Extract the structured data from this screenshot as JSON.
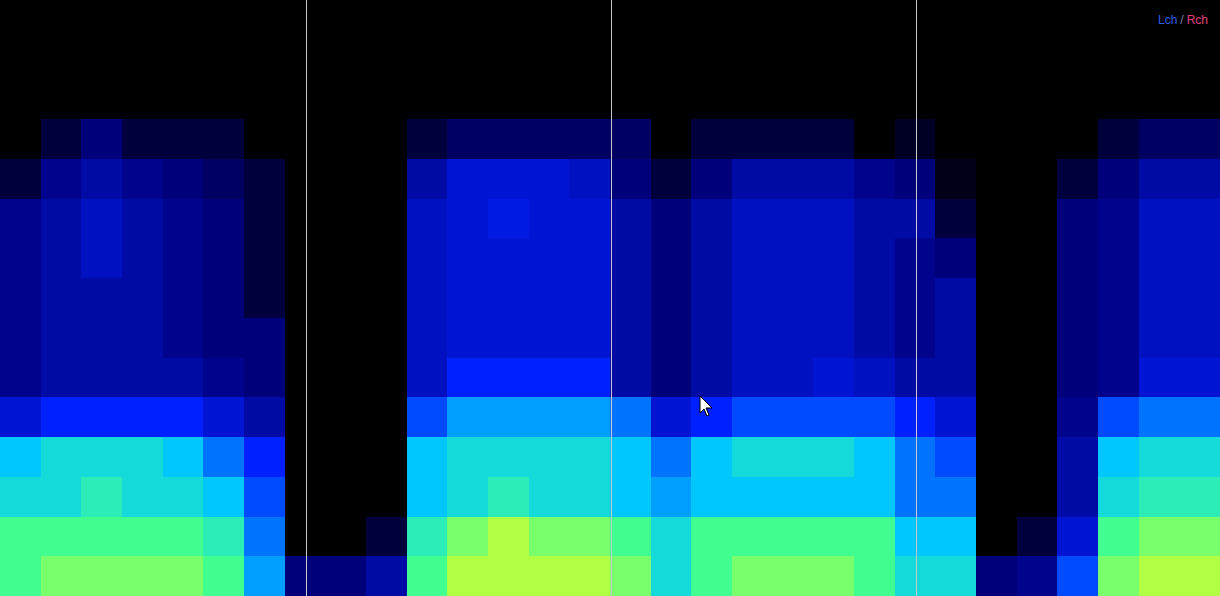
{
  "chart_data": {
    "type": "heatmap",
    "channels": [
      {
        "name": "Lch",
        "color": "#2a5ee8"
      },
      {
        "name": "Rch",
        "color": "#e0407a"
      }
    ],
    "separator": "/",
    "xlim": [
      0,
      30
    ],
    "ylim": [
      0,
      15
    ],
    "zlim": [
      0,
      1
    ],
    "tick_labels": false,
    "markers": [
      7.52,
      15.02,
      22.52
    ],
    "cells": [
      [
        0,
        0,
        0,
        0,
        0,
        0,
        0,
        0,
        0,
        0,
        0,
        0,
        0,
        0,
        0,
        0,
        0,
        0,
        0,
        0,
        0,
        0,
        0,
        0,
        0,
        0,
        0,
        0,
        0,
        0
      ],
      [
        0,
        0,
        0,
        0,
        0,
        0,
        0,
        0,
        0,
        0,
        0,
        0,
        0,
        0,
        0,
        0,
        0,
        0,
        0,
        0,
        0,
        0,
        0,
        0,
        0,
        0,
        0,
        0,
        0,
        0
      ],
      [
        0,
        0,
        0,
        0,
        0,
        0,
        0,
        0,
        0,
        0,
        0,
        0,
        0,
        0,
        0,
        0,
        0,
        0,
        0,
        0,
        0,
        0,
        0,
        0,
        0,
        0,
        0,
        0,
        0,
        0
      ],
      [
        0,
        0.05,
        0.1,
        0.05,
        0.05,
        0.05,
        0,
        0,
        0,
        0,
        0.05,
        0.08,
        0.08,
        0.08,
        0.08,
        0.08,
        0,
        0.05,
        0.05,
        0.05,
        0.05,
        0,
        0.03,
        0,
        0,
        0,
        0,
        0.05,
        0.08,
        0.08
      ],
      [
        0.05,
        0.12,
        0.15,
        0.12,
        0.1,
        0.08,
        0.05,
        0,
        0,
        0,
        0.15,
        0.2,
        0.2,
        0.2,
        0.18,
        0.1,
        0.05,
        0.1,
        0.15,
        0.15,
        0.15,
        0.12,
        0.1,
        0.02,
        0,
        0,
        0.05,
        0.1,
        0.15,
        0.15
      ],
      [
        0.12,
        0.15,
        0.18,
        0.15,
        0.12,
        0.1,
        0.05,
        0,
        0,
        0,
        0.18,
        0.2,
        0.22,
        0.2,
        0.2,
        0.15,
        0.1,
        0.15,
        0.18,
        0.18,
        0.18,
        0.15,
        0.15,
        0.05,
        0,
        0,
        0.1,
        0.12,
        0.18,
        0.18
      ],
      [
        0.12,
        0.15,
        0.18,
        0.15,
        0.12,
        0.1,
        0.05,
        0,
        0,
        0,
        0.18,
        0.2,
        0.2,
        0.2,
        0.2,
        0.15,
        0.1,
        0.15,
        0.18,
        0.18,
        0.18,
        0.15,
        0.12,
        0.1,
        0,
        0,
        0.1,
        0.12,
        0.18,
        0.18
      ],
      [
        0.12,
        0.15,
        0.15,
        0.15,
        0.12,
        0.1,
        0.05,
        0,
        0,
        0,
        0.18,
        0.2,
        0.2,
        0.2,
        0.2,
        0.15,
        0.1,
        0.15,
        0.18,
        0.18,
        0.18,
        0.15,
        0.12,
        0.15,
        0,
        0,
        0.1,
        0.12,
        0.18,
        0.18
      ],
      [
        0.12,
        0.15,
        0.15,
        0.15,
        0.12,
        0.1,
        0.1,
        0,
        0,
        0,
        0.18,
        0.2,
        0.2,
        0.2,
        0.2,
        0.15,
        0.1,
        0.15,
        0.18,
        0.18,
        0.18,
        0.15,
        0.12,
        0.15,
        0,
        0,
        0.1,
        0.12,
        0.18,
        0.18
      ],
      [
        0.12,
        0.15,
        0.15,
        0.15,
        0.15,
        0.12,
        0.1,
        0,
        0,
        0,
        0.18,
        0.25,
        0.25,
        0.25,
        0.25,
        0.15,
        0.1,
        0.15,
        0.18,
        0.18,
        0.2,
        0.18,
        0.15,
        0.15,
        0,
        0,
        0.1,
        0.12,
        0.2,
        0.2
      ],
      [
        0.2,
        0.25,
        0.25,
        0.25,
        0.25,
        0.2,
        0.15,
        0,
        0,
        0,
        0.3,
        0.4,
        0.4,
        0.4,
        0.4,
        0.35,
        0.2,
        0.25,
        0.3,
        0.3,
        0.3,
        0.3,
        0.25,
        0.2,
        0,
        0,
        0.12,
        0.3,
        0.35,
        0.35
      ],
      [
        0.45,
        0.5,
        0.5,
        0.5,
        0.45,
        0.35,
        0.25,
        0,
        0,
        0,
        0.45,
        0.5,
        0.5,
        0.5,
        0.5,
        0.45,
        0.35,
        0.45,
        0.5,
        0.5,
        0.5,
        0.45,
        0.35,
        0.3,
        0,
        0,
        0.15,
        0.45,
        0.5,
        0.5
      ],
      [
        0.5,
        0.5,
        0.55,
        0.5,
        0.5,
        0.45,
        0.3,
        0,
        0,
        0,
        0.45,
        0.5,
        0.55,
        0.5,
        0.5,
        0.45,
        0.4,
        0.45,
        0.45,
        0.45,
        0.45,
        0.45,
        0.35,
        0.35,
        0,
        0,
        0.15,
        0.5,
        0.55,
        0.55
      ],
      [
        0.6,
        0.6,
        0.6,
        0.6,
        0.6,
        0.55,
        0.35,
        0,
        0,
        0.05,
        0.55,
        0.65,
        0.7,
        0.65,
        0.65,
        0.6,
        0.5,
        0.6,
        0.6,
        0.6,
        0.6,
        0.6,
        0.45,
        0.45,
        0,
        0.05,
        0.2,
        0.6,
        0.65,
        0.65
      ],
      [
        0.6,
        0.65,
        0.65,
        0.65,
        0.65,
        0.6,
        0.4,
        0.1,
        0.1,
        0.15,
        0.6,
        0.7,
        0.7,
        0.7,
        0.7,
        0.65,
        0.5,
        0.6,
        0.65,
        0.65,
        0.65,
        0.6,
        0.5,
        0.5,
        0.1,
        0.12,
        0.3,
        0.65,
        0.7,
        0.7
      ]
    ]
  }
}
